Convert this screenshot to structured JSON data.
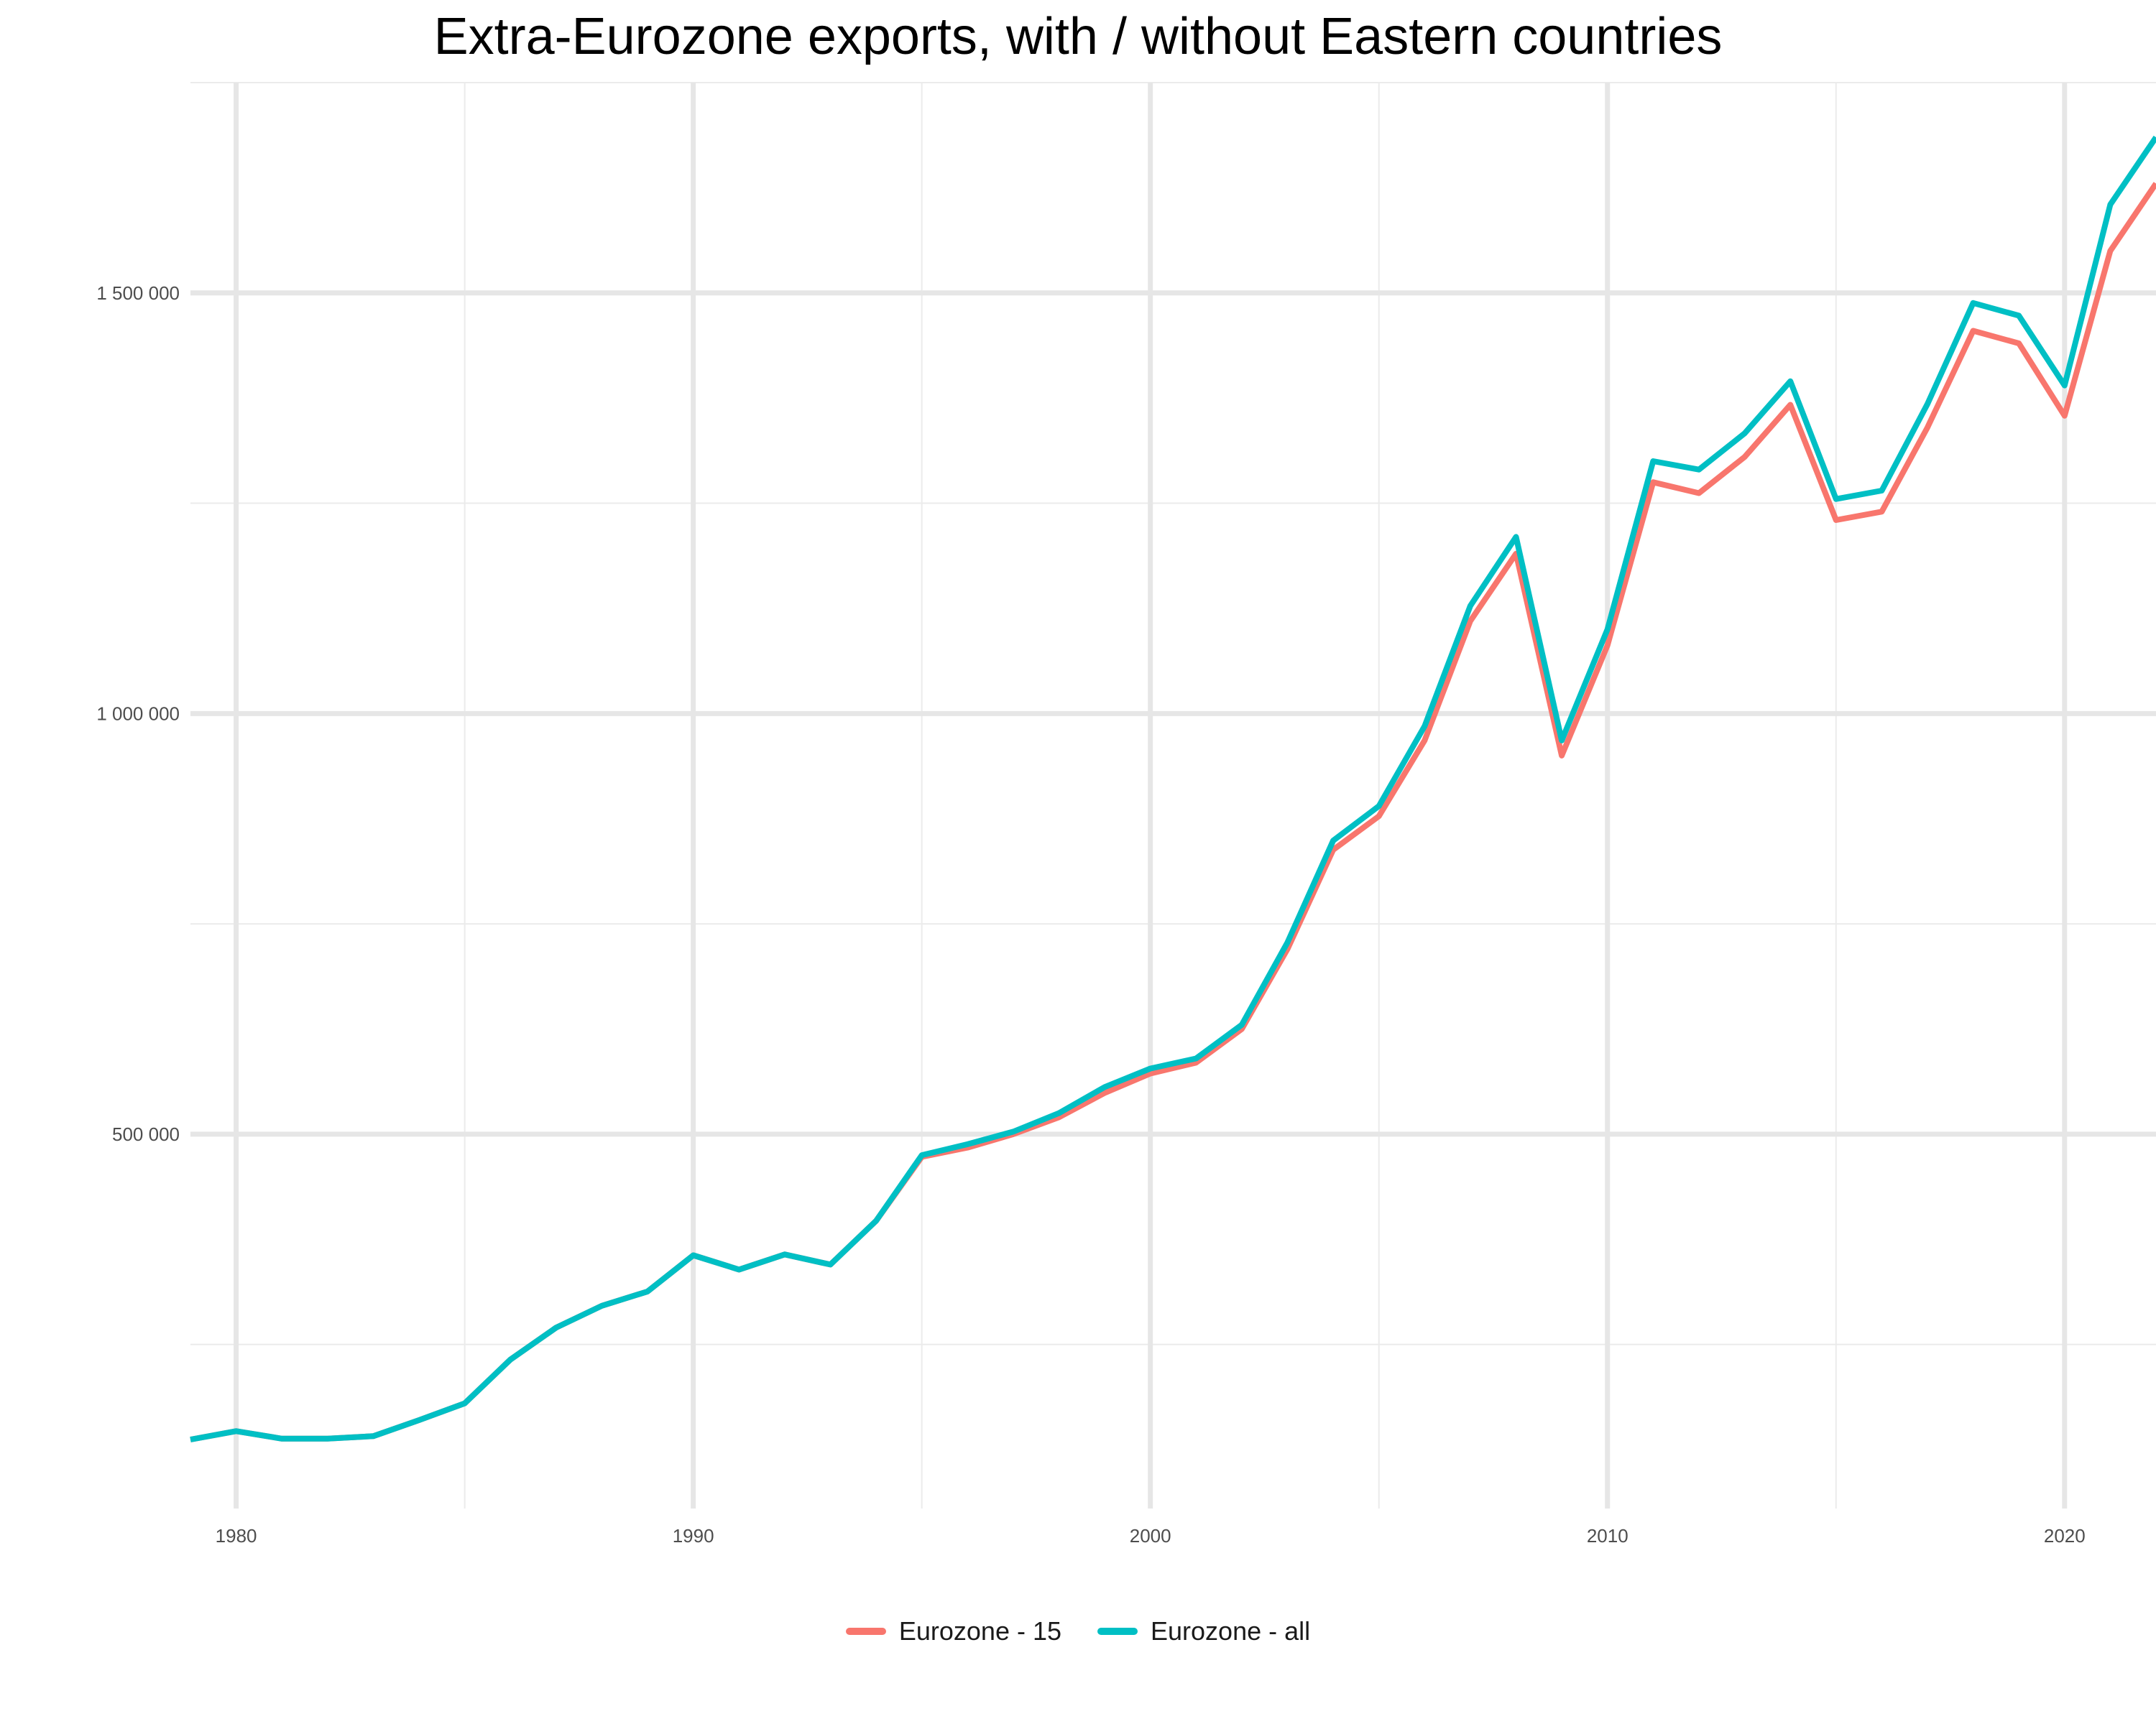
{
  "chart_data": {
    "type": "line",
    "title": "Extra-Eurozone exports, with / without Eastern countries",
    "xlabel": "",
    "ylabel": "",
    "xlim": [
      1979,
      2022
    ],
    "ylim": [
      55000,
      1750000
    ],
    "x_ticks": [
      1980,
      1990,
      2000,
      2010,
      2020
    ],
    "x_tick_labels": [
      "1980",
      "1990",
      "2000",
      "2010",
      "2020"
    ],
    "y_ticks": [
      500000,
      1000000,
      1500000
    ],
    "y_tick_labels": [
      "500 000",
      "1 000 000",
      "1 500 000"
    ],
    "grid": true,
    "legend_position": "bottom",
    "x": [
      1979,
      1980,
      1981,
      1982,
      1983,
      1984,
      1985,
      1986,
      1987,
      1988,
      1989,
      1990,
      1991,
      1992,
      1993,
      1994,
      1995,
      1996,
      1997,
      1998,
      1999,
      2000,
      2001,
      2002,
      2003,
      2004,
      2005,
      2006,
      2007,
      2008,
      2009,
      2010,
      2011,
      2012,
      2013,
      2014,
      2015,
      2016,
      2017,
      2018,
      2019,
      2020,
      2021,
      2022
    ],
    "series": [
      {
        "name": "Eurozone - 15",
        "color": "#f8766d",
        "values": [
          137000,
          147000,
          138000,
          138000,
          141000,
          160000,
          180000,
          232000,
          270000,
          296000,
          313000,
          356000,
          339000,
          357000,
          345000,
          397000,
          473000,
          484000,
          500000,
          520000,
          549000,
          572000,
          585000,
          625000,
          720000,
          838000,
          878000,
          968000,
          1110000,
          1190000,
          950000,
          1081000,
          1275000,
          1262000,
          1305000,
          1367000,
          1230000,
          1240000,
          1340000,
          1455000,
          1440000,
          1354000,
          1550000,
          1630000
        ]
      },
      {
        "name": "Eurozone - all",
        "color": "#00bfc4",
        "values": [
          137000,
          147000,
          138000,
          138000,
          141000,
          160000,
          180000,
          232000,
          270000,
          296000,
          313000,
          356000,
          339000,
          357000,
          345000,
          397000,
          475000,
          488000,
          503000,
          525000,
          556000,
          578000,
          590000,
          630000,
          728000,
          849000,
          890000,
          985000,
          1128000,
          1210000,
          968000,
          1100000,
          1300000,
          1290000,
          1333000,
          1395000,
          1255000,
          1265000,
          1368000,
          1488000,
          1473000,
          1390000,
          1605000,
          1685000
        ]
      }
    ]
  }
}
